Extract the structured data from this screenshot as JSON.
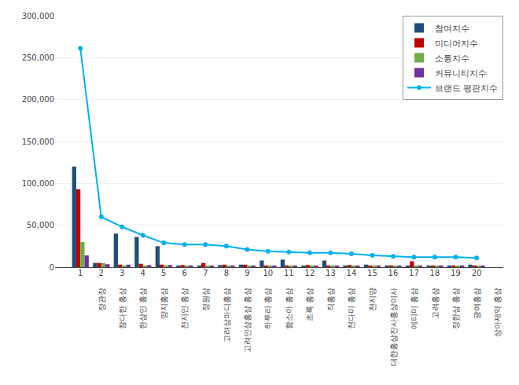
{
  "chart_data": {
    "type": "bar",
    "categories": [
      "1",
      "2",
      "3",
      "4",
      "5",
      "6",
      "7",
      "8",
      "9",
      "10",
      "11",
      "12",
      "13",
      "14",
      "15",
      "16",
      "17",
      "18",
      "19",
      "20"
    ],
    "annotations": [
      "정관장",
      "참다한 홍삼",
      "한삼인 홍삼",
      "양지홍삼",
      "천지인 홍삼",
      "정원삼",
      "고려삼마디홍삼",
      "고려인삼홍삼 홍삼",
      "하투리 홍삼",
      "함소아 홍삼",
      "초록 홍삼",
      "직홍삼",
      "천다미 홍삼",
      "천지양",
      "대한홍삼진사홍삼이사",
      "에티미 홍삼",
      "고려홍삼",
      "정한삼 홍삼",
      "광여홍삼",
      "상아제약 홍삼"
    ],
    "series": [
      {
        "name": "참여지수",
        "type": "bar",
        "color": "#1f4e79",
        "values": [
          120000,
          5000,
          40000,
          36000,
          25000,
          2000,
          2000,
          2500,
          3000,
          8000,
          9000,
          2000,
          8000,
          2000,
          3000,
          2000,
          2000,
          2000,
          2000,
          3000
        ]
      },
      {
        "name": "미디어지수",
        "type": "bar",
        "color": "#c00000",
        "values": [
          93000,
          5000,
          3000,
          4000,
          3000,
          2500,
          5000,
          3000,
          3000,
          2000,
          2000,
          2500,
          2000,
          2500,
          2000,
          2000,
          7000,
          2000,
          2000,
          2000
        ]
      },
      {
        "name": "소통지수",
        "type": "bar",
        "color": "#70ad47",
        "values": [
          30000,
          5000,
          2000,
          2000,
          2000,
          2000,
          2000,
          2000,
          2000,
          2000,
          2000,
          2000,
          2000,
          2000,
          2000,
          2000,
          2000,
          2000,
          2000,
          2000
        ]
      },
      {
        "name": "커뮤니티지수",
        "type": "bar",
        "color": "#7030a0",
        "values": [
          14000,
          3500,
          3000,
          2500,
          2500,
          2000,
          2000,
          2000,
          2000,
          2000,
          2000,
          2000,
          2000,
          2000,
          2000,
          2000,
          2000,
          2000,
          2000,
          2000
        ]
      },
      {
        "name": "브랜드 평판지수",
        "type": "line",
        "color": "#00b0f0",
        "marker": "circle",
        "values": [
          261000,
          60000,
          48000,
          38000,
          29000,
          27000,
          27000,
          25000,
          21000,
          19000,
          18000,
          17000,
          17000,
          16000,
          14000,
          13000,
          12000,
          12000,
          12000,
          11000
        ]
      }
    ],
    "ylim": [
      0,
      300000
    ],
    "yticks": [
      0,
      {
        "value": 50000,
        "label": "50,000"
      },
      {
        "value": 100000,
        "label": "100,000"
      },
      {
        "value": 150000,
        "label": "150,000"
      },
      {
        "value": 200000,
        "label": "200,000"
      },
      {
        "value": 250000,
        "label": "250,000"
      },
      {
        "value": 300000,
        "label": "300,000"
      }
    ],
    "grid": true,
    "legend": "upper right"
  }
}
